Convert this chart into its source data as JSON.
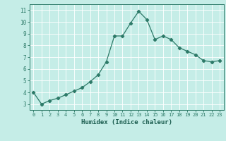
{
  "xlabel": "Humidex (Indice chaleur)",
  "x": [
    0,
    1,
    2,
    3,
    4,
    5,
    6,
    7,
    8,
    9,
    10,
    11,
    12,
    13,
    14,
    15,
    16,
    17,
    18,
    19,
    20,
    21,
    22,
    23
  ],
  "y": [
    4.0,
    3.0,
    3.3,
    3.5,
    3.8,
    4.1,
    4.4,
    4.9,
    5.5,
    6.6,
    8.8,
    8.8,
    9.9,
    10.9,
    10.2,
    8.5,
    8.8,
    8.5,
    7.8,
    7.5,
    7.2,
    6.7,
    6.6,
    6.7
  ],
  "line_color": "#2d7a68",
  "marker": "D",
  "marker_size": 2.2,
  "bg_color": "#c5ede7",
  "grid_color": "#ffffff",
  "axis_color": "#2d7a68",
  "tick_label_color": "#1a5c4e",
  "xlabel_color": "#1a5c4e",
  "ylim": [
    2.5,
    11.5
  ],
  "yticks": [
    3,
    4,
    5,
    6,
    7,
    8,
    9,
    10,
    11
  ],
  "xlim": [
    -0.5,
    23.5
  ],
  "xticks": [
    0,
    1,
    2,
    3,
    4,
    5,
    6,
    7,
    8,
    9,
    10,
    11,
    12,
    13,
    14,
    15,
    16,
    17,
    18,
    19,
    20,
    21,
    22,
    23
  ]
}
